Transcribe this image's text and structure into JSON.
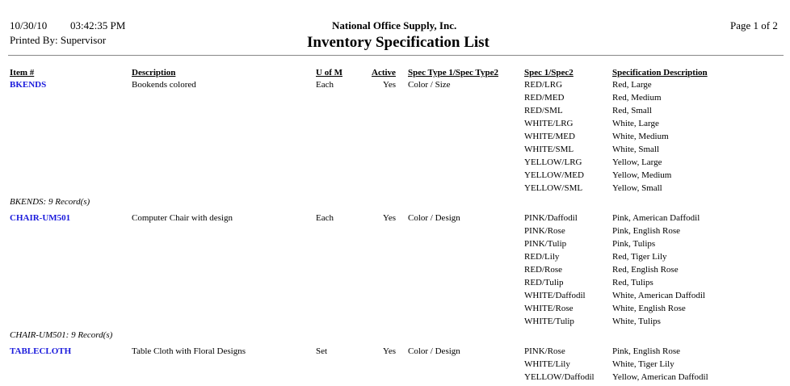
{
  "header": {
    "date": "10/30/10",
    "time": "03:42:35 PM",
    "printed_by": "Printed By: Supervisor",
    "company": "National Office Supply, Inc.",
    "title": "Inventory Specification List",
    "page": "Page 1 of 2"
  },
  "columns": {
    "item": "Item #",
    "description": "Description",
    "uom": "U of M",
    "active": "Active",
    "spec_type": "Spec Type 1/Spec Type2",
    "spec": "Spec 1/Spec2",
    "spec_desc": "Specification Description"
  },
  "groups": [
    {
      "item": "BKENDS",
      "description": "Bookends colored",
      "uom": "Each",
      "active": "Yes",
      "spec_type": "Color / Size",
      "specs": [
        [
          "RED/LRG",
          "Red, Large"
        ],
        [
          "RED/MED",
          "Red, Medium"
        ],
        [
          "RED/SML",
          "Red, Small"
        ],
        [
          "WHITE/LRG",
          "White, Large"
        ],
        [
          "WHITE/MED",
          "White, Medium"
        ],
        [
          "WHITE/SML",
          "White, Small"
        ],
        [
          "YELLOW/LRG",
          "Yellow, Large"
        ],
        [
          "YELLOW/MED",
          "Yellow, Medium"
        ],
        [
          "YELLOW/SML",
          "Yellow, Small"
        ]
      ],
      "summary": "BKENDS: 9 Record(s)"
    },
    {
      "item": "CHAIR-UM501",
      "description": "Computer Chair with design",
      "uom": "Each",
      "active": "Yes",
      "spec_type": "Color / Design",
      "specs": [
        [
          "PINK/Daffodil",
          "Pink, American Daffodil"
        ],
        [
          "PINK/Rose",
          "Pink, English Rose"
        ],
        [
          "PINK/Tulip",
          "Pink, Tulips"
        ],
        [
          "RED/Lily",
          "Red, Tiger Lily"
        ],
        [
          "RED/Rose",
          "Red, English Rose"
        ],
        [
          "RED/Tulip",
          "Red, Tulips"
        ],
        [
          "WHITE/Daffodil",
          "White, American Daffodil"
        ],
        [
          "WHITE/Rose",
          "White, English Rose"
        ],
        [
          "WHITE/Tulip",
          "White, Tulips"
        ]
      ],
      "summary": "CHAIR-UM501: 9 Record(s)"
    },
    {
      "item": "TABLECLOTH",
      "description": "Table Cloth with Floral Designs",
      "uom": "Set",
      "active": "Yes",
      "spec_type": "Color / Design",
      "specs": [
        [
          "PINK/Rose",
          "Pink, English Rose"
        ],
        [
          "WHITE/Lily",
          "White, Tiger Lily"
        ],
        [
          "YELLOW/Daffodil",
          "Yellow, American Daffodil"
        ]
      ]
    }
  ]
}
